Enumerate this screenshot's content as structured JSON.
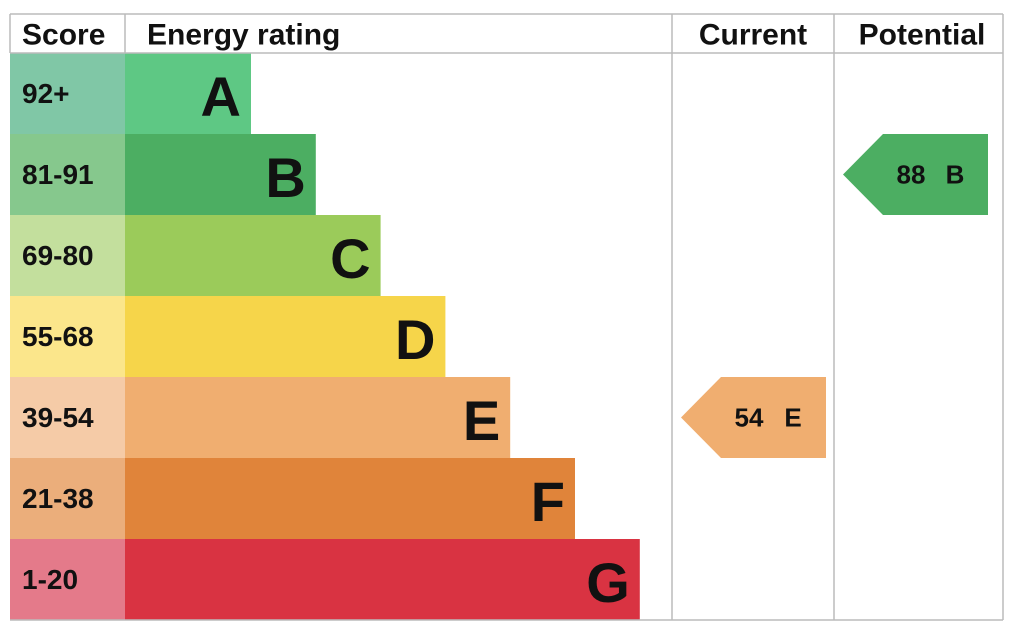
{
  "header": {
    "score": "Score",
    "rating": "Energy rating",
    "current": "Current",
    "potential": "Potential"
  },
  "bands": [
    {
      "score": "92+",
      "letter": "A",
      "color": "#5ec884",
      "score_color": "#80c7a6"
    },
    {
      "score": "81-91",
      "letter": "B",
      "color": "#4cae62",
      "score_color": "#86c88d"
    },
    {
      "score": "69-80",
      "letter": "C",
      "color": "#9bcb5a",
      "score_color": "#c3df9d"
    },
    {
      "score": "55-68",
      "letter": "D",
      "color": "#f6d54a",
      "score_color": "#fbe68b"
    },
    {
      "score": "39-54",
      "letter": "E",
      "color": "#f0ae70",
      "score_color": "#f5cba7"
    },
    {
      "score": "21-38",
      "letter": "F",
      "color": "#e0843a",
      "score_color": "#ebae7b"
    },
    {
      "score": "1-20",
      "letter": "G",
      "color": "#d93342",
      "score_color": "#e47a8a"
    }
  ],
  "current": {
    "score": 54,
    "band": "E"
  },
  "potential": {
    "score": 88,
    "band": "B"
  }
}
